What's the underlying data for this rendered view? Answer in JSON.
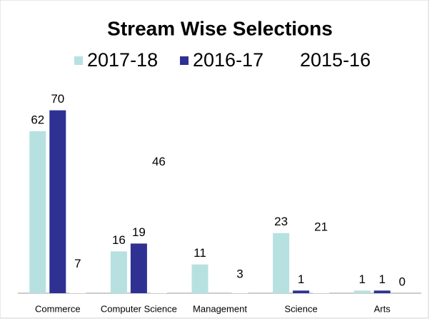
{
  "chart_data": {
    "type": "bar",
    "title": "Stream Wise Selections",
    "categories": [
      "Commerce",
      "Computer Science",
      "Management",
      "Science",
      "Arts"
    ],
    "series": [
      {
        "name": "2017-18",
        "color": "#b7e1e1",
        "values": [
          62,
          16,
          11,
          23,
          1
        ]
      },
      {
        "name": "2016-17",
        "color": "#2e3192",
        "values": [
          70,
          19,
          null,
          1,
          1
        ]
      },
      {
        "name": "2015-16",
        "color": "#ffffff",
        "values": [
          7,
          46,
          3,
          21,
          0
        ]
      }
    ],
    "ylim": [
      0,
      80
    ],
    "legend": "top"
  }
}
